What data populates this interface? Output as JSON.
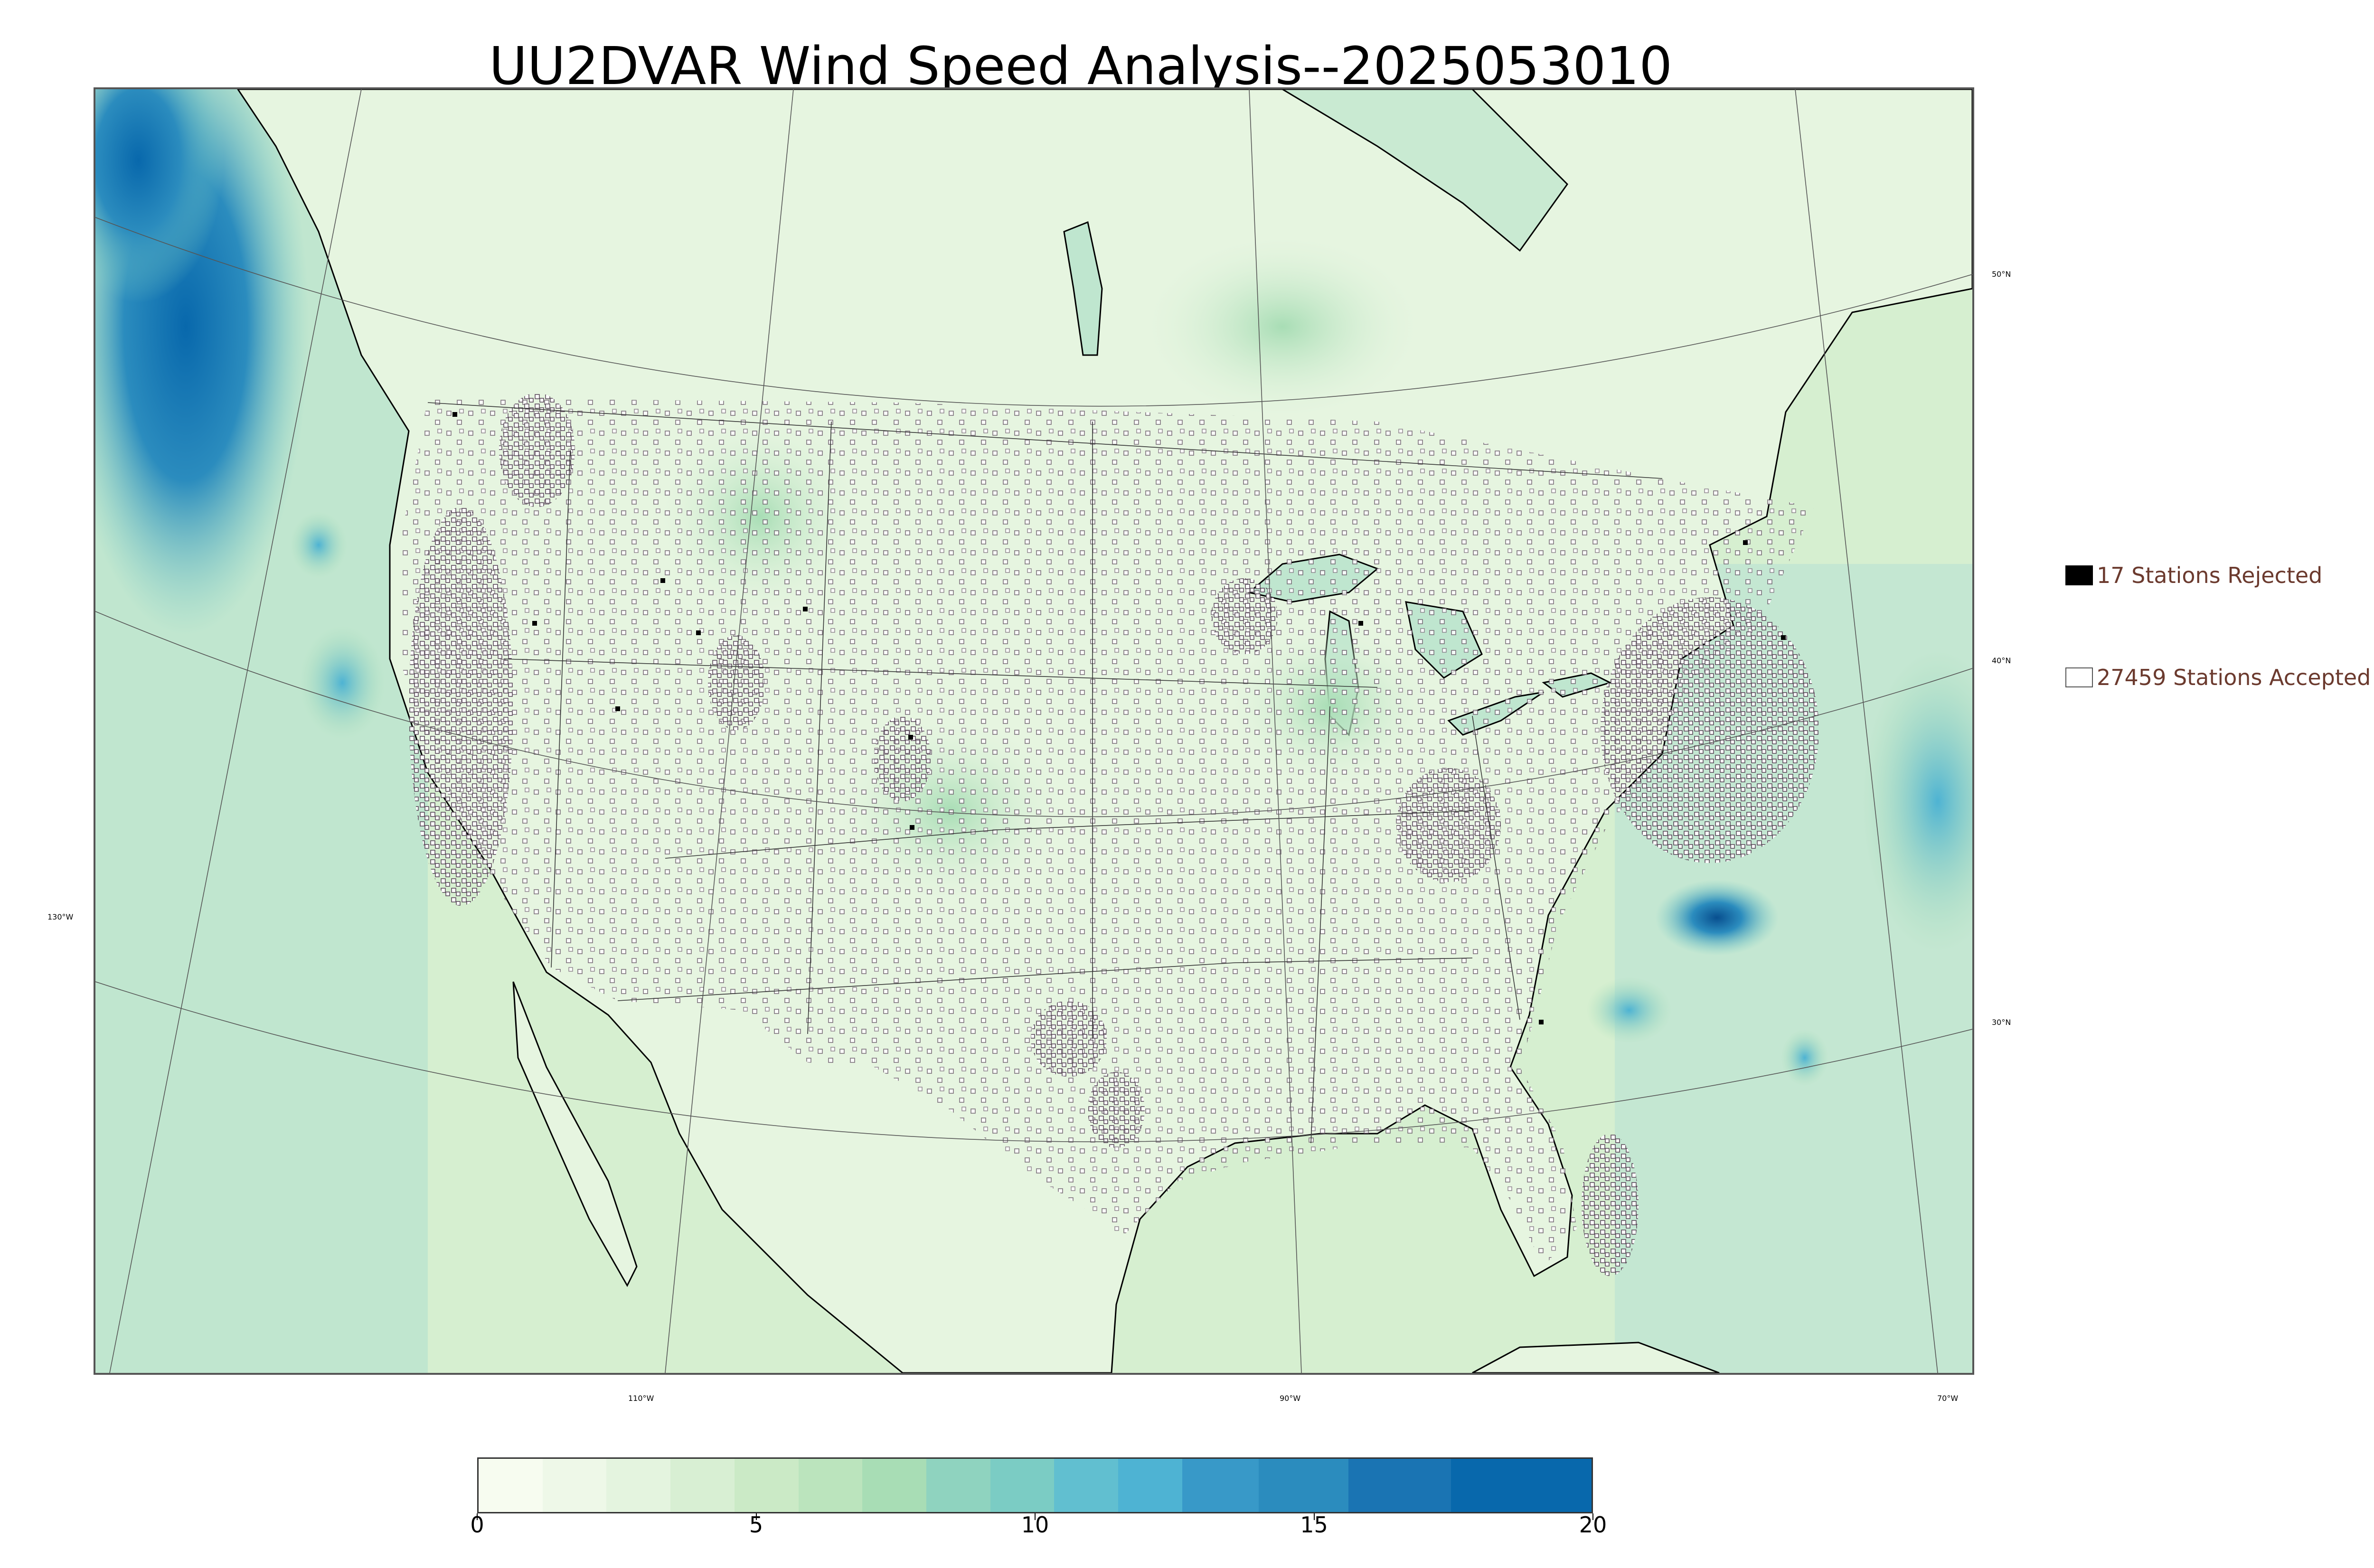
{
  "title": "UU2DVAR Wind Speed Analysis--2025053010",
  "legend": {
    "rejected": "17 Stations Rejected",
    "accepted": "27459 Stations Accepted"
  },
  "graticule": {
    "lat_labels": [
      "50°N",
      "40°N",
      "30°N"
    ],
    "lon_labels": [
      "130°W",
      "110°W",
      "90°W",
      "70°W"
    ]
  },
  "colorbar": {
    "ticks": [
      "0",
      "5",
      "10",
      "15",
      "20"
    ],
    "min": 0,
    "max": 20,
    "colors": [
      "#f7fcf0",
      "#eef8e8",
      "#e4f4df",
      "#d8efd3",
      "#cbeac6",
      "#bbe4bd",
      "#a8ddb5",
      "#8fd3bf",
      "#7bccc4",
      "#61bfd0",
      "#4eb3d3",
      "#3899c8",
      "#2b8cbe",
      "#1a74b3",
      "#0868ac"
    ]
  },
  "colors": {
    "land": "#e9f6e4",
    "ocean": "#bfe6cf",
    "strong_wind": "#2b8cbe",
    "rejected_marker": "#000000",
    "accepted_marker": "#ffffff",
    "legend_text": "#6b3a2e"
  }
}
